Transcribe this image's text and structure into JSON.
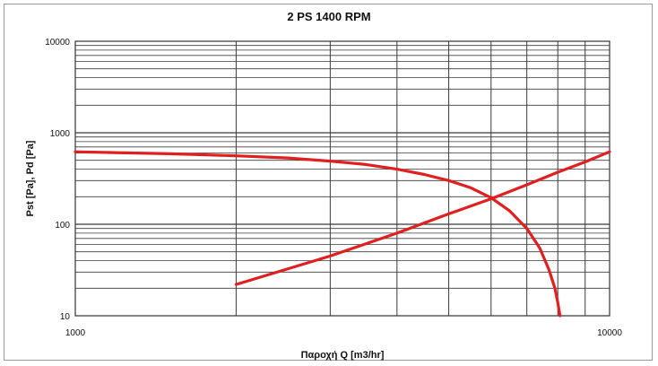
{
  "chart_data": {
    "type": "line",
    "title": "2 PS 1400 RPM",
    "xlabel": "Παροχή Q [m3/hr]",
    "ylabel": "Pst [Pa], Pd [Pa]",
    "x_scale": "log",
    "y_scale": "log",
    "xlim": [
      1000,
      10000
    ],
    "ylim": [
      10,
      10000
    ],
    "x_ticks": [
      "1000",
      "10000"
    ],
    "y_ticks": [
      "10",
      "100",
      "1000",
      "10000"
    ],
    "grid": true,
    "line_color": "#e02020",
    "series": [
      {
        "x": [
          1000,
          1500,
          2000,
          2500,
          3000,
          3500,
          4000,
          4500,
          5000,
          5500,
          6000,
          6500,
          7000,
          7400,
          7700,
          7900,
          8000,
          8050,
          8080
        ],
        "y": [
          620,
          590,
          560,
          530,
          490,
          450,
          400,
          350,
          300,
          250,
          195,
          140,
          90,
          55,
          32,
          20,
          14,
          11,
          10
        ]
      },
      {
        "x": [
          2000,
          3000,
          4000,
          5000,
          6000,
          7000,
          8000,
          9000,
          10000
        ],
        "y": [
          22,
          45,
          80,
          130,
          190,
          270,
          370,
          480,
          620
        ]
      }
    ]
  }
}
